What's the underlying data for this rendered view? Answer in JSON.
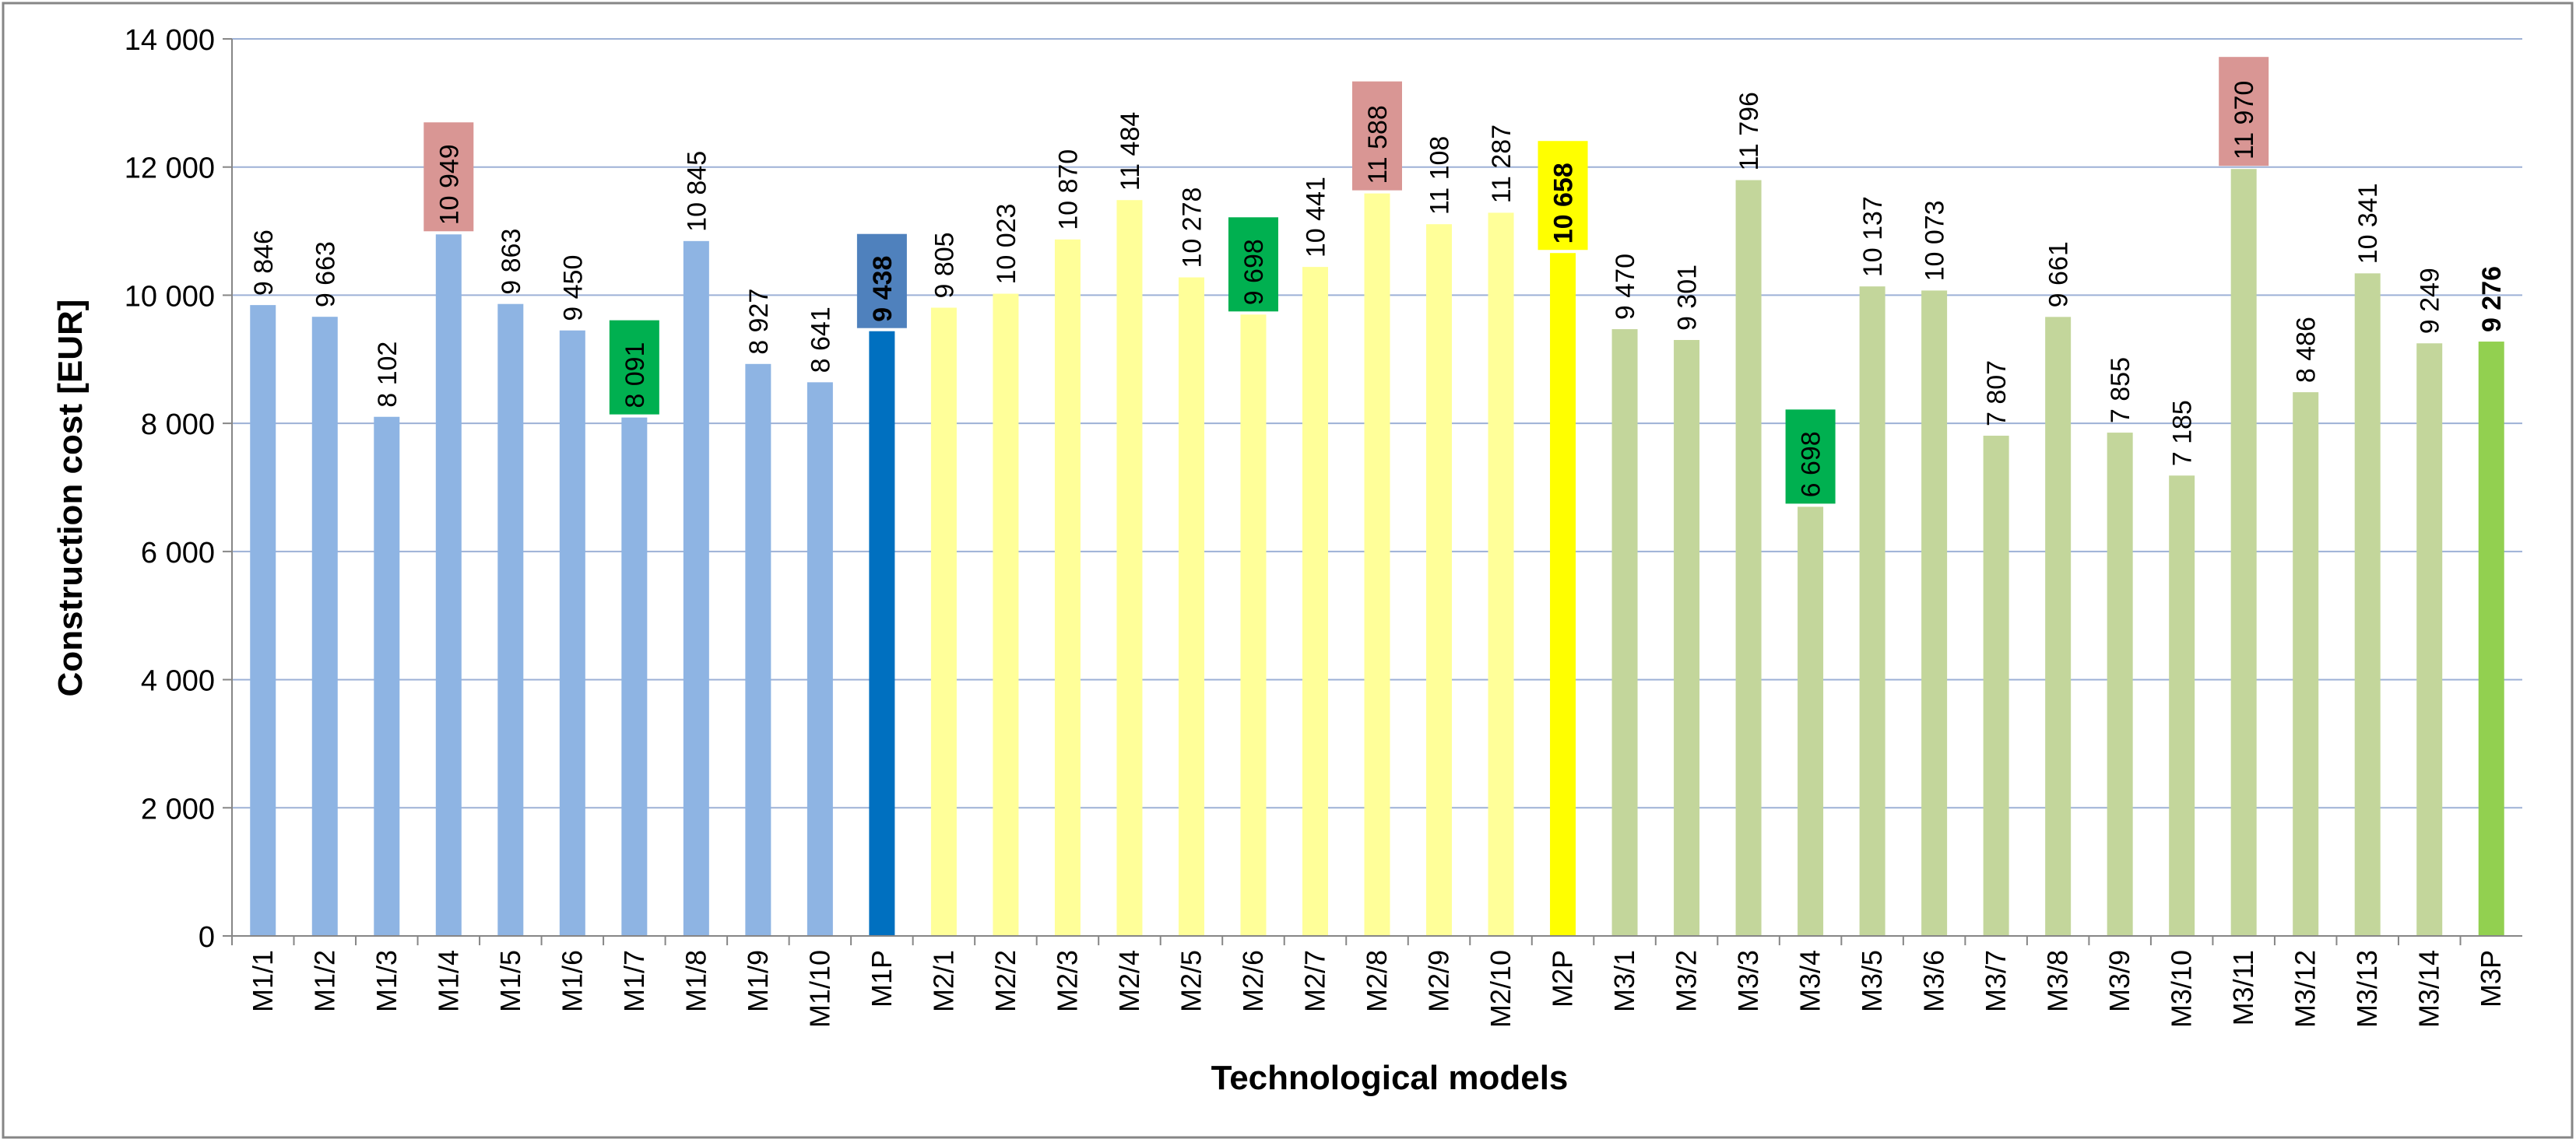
{
  "chart_data": {
    "type": "bar",
    "title": "",
    "xlabel": "Technological models",
    "ylabel": "Construction cost [EUR]",
    "ylim": [
      0,
      14000
    ],
    "ytick_step": 2000,
    "yticks": [
      "0",
      "2 000",
      "4 000",
      "6 000",
      "8 000",
      "10 000",
      "12 000",
      "14 000"
    ],
    "grid": true,
    "legend": "none",
    "categories": [
      "M1/1",
      "M1/2",
      "M1/3",
      "M1/4",
      "M1/5",
      "M1/6",
      "M1/7",
      "M1/8",
      "M1/9",
      "M1/10",
      "M1P",
      "M2/1",
      "M2/2",
      "M2/3",
      "M2/4",
      "M2/5",
      "M2/6",
      "M2/7",
      "M2/8",
      "M2/9",
      "M2/10",
      "M2P",
      "M3/1",
      "M3/2",
      "M3/3",
      "M3/4",
      "M3/5",
      "M3/6",
      "M3/7",
      "M3/8",
      "M3/9",
      "M3/10",
      "M3/11",
      "M3/12",
      "M3/13",
      "M3/14",
      "M3P"
    ],
    "values": [
      9846,
      9663,
      8102,
      10949,
      9863,
      9450,
      8091,
      10845,
      8927,
      8641,
      9438,
      9805,
      10023,
      10870,
      11484,
      10278,
      9698,
      10441,
      11588,
      11108,
      11287,
      10658,
      9470,
      9301,
      11796,
      6698,
      10137,
      10073,
      7807,
      9661,
      7855,
      7185,
      11970,
      8486,
      10341,
      9249,
      9276
    ],
    "value_labels": [
      "9 846",
      "9 663",
      "8 102",
      "10 949",
      "9 863",
      "9 450",
      "8 091",
      "10 845",
      "8 927",
      "8 641",
      "9 438",
      "9 805",
      "10 023",
      "10 870",
      "11 484",
      "10 278",
      "9 698",
      "10 441",
      "11 588",
      "11 108",
      "11 287",
      "10 658",
      "9 470",
      "9 301",
      "11 796",
      "6 698",
      "10 137",
      "10 073",
      "7 807",
      "9 661",
      "7 855",
      "7 185",
      "11 970",
      "8 486",
      "10 341",
      "9 249",
      "9 276"
    ],
    "groups": [
      {
        "name": "M1",
        "bar_color": "#8EB4E3",
        "summary_color": "#0070C0"
      },
      {
        "name": "M2",
        "bar_color": "#FFFF99",
        "summary_color": "#FFFF00"
      },
      {
        "name": "M3",
        "bar_color": "#C3D69B",
        "summary_color": "#92D050"
      }
    ],
    "group_index": [
      0,
      0,
      0,
      0,
      0,
      0,
      0,
      0,
      0,
      0,
      0,
      1,
      1,
      1,
      1,
      1,
      1,
      1,
      1,
      1,
      1,
      1,
      2,
      2,
      2,
      2,
      2,
      2,
      2,
      2,
      2,
      2,
      2,
      2,
      2,
      2,
      2
    ],
    "summary_bars": [
      "M1P",
      "M2P",
      "M3P"
    ],
    "highlights": {
      "max": {
        "categories": [
          "M1/4",
          "M2/8",
          "M3/11"
        ],
        "color": "#D99694"
      },
      "min": {
        "categories": [
          "M1/7",
          "M2/6",
          "M3/4"
        ],
        "color": "#00B050"
      },
      "summary_label_boxes": {
        "M1P": "#4F81BD",
        "M2P": "#FFFF00"
      }
    }
  }
}
